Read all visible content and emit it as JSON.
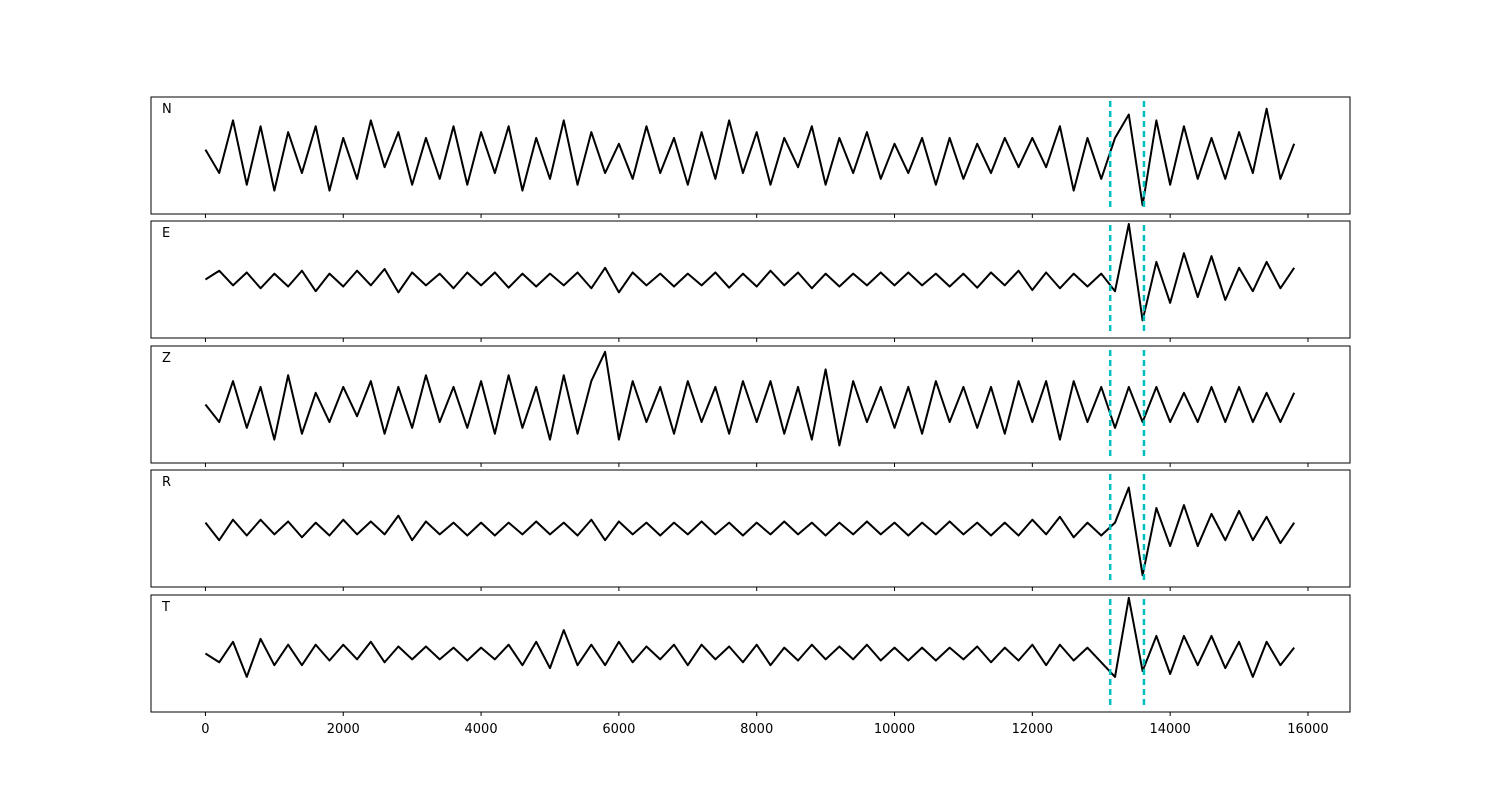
{
  "chart_data": [
    {
      "type": "line",
      "label": "N",
      "color": "#000000",
      "vline_color": "#00bfbf",
      "vlines": [
        13130,
        13620
      ],
      "xlim": [
        -790,
        16610
      ],
      "ylim": [
        -1,
        1
      ],
      "xticks": [
        0,
        2000,
        4000,
        6000,
        8000,
        10000,
        12000,
        14000,
        16000
      ],
      "xtick_labels": false,
      "x": [
        0,
        200,
        400,
        600,
        800,
        1000,
        1200,
        1400,
        1600,
        1800,
        2000,
        2200,
        2400,
        2600,
        2800,
        3000,
        3200,
        3400,
        3600,
        3800,
        4000,
        4200,
        4400,
        4600,
        4800,
        5000,
        5200,
        5400,
        5600,
        5800,
        6000,
        6200,
        6400,
        6600,
        6800,
        7000,
        7200,
        7400,
        7600,
        7800,
        8000,
        8200,
        8400,
        8600,
        8800,
        9000,
        9200,
        9400,
        9600,
        9800,
        10000,
        10200,
        10400,
        10600,
        10800,
        11000,
        11200,
        11400,
        11600,
        11800,
        12000,
        12200,
        12400,
        12600,
        12800,
        13000,
        13200,
        13400,
        13600,
        13800,
        14000,
        14200,
        14400,
        14600,
        14800,
        15000,
        15200,
        15400,
        15600,
        15800
      ],
      "values": [
        0.1,
        -0.3,
        0.6,
        -0.5,
        0.5,
        -0.6,
        0.4,
        -0.3,
        0.5,
        -0.6,
        0.3,
        -0.4,
        0.6,
        -0.2,
        0.4,
        -0.5,
        0.3,
        -0.4,
        0.5,
        -0.5,
        0.4,
        -0.3,
        0.5,
        -0.6,
        0.3,
        -0.4,
        0.6,
        -0.5,
        0.4,
        -0.3,
        0.2,
        -0.4,
        0.5,
        -0.3,
        0.3,
        -0.5,
        0.4,
        -0.4,
        0.6,
        -0.3,
        0.4,
        -0.5,
        0.3,
        -0.2,
        0.5,
        -0.5,
        0.3,
        -0.3,
        0.4,
        -0.4,
        0.2,
        -0.3,
        0.3,
        -0.5,
        0.3,
        -0.4,
        0.2,
        -0.3,
        0.3,
        -0.2,
        0.3,
        -0.2,
        0.5,
        -0.6,
        0.3,
        -0.4,
        0.3,
        0.7,
        -0.85,
        0.6,
        -0.5,
        0.5,
        -0.4,
        0.3,
        -0.4,
        0.4,
        -0.3,
        0.8,
        -0.4,
        0.2
      ]
    },
    {
      "type": "line",
      "label": "E",
      "color": "#000000",
      "vline_color": "#00bfbf",
      "vlines": [
        13130,
        13620
      ],
      "xlim": [
        -790,
        16610
      ],
      "ylim": [
        -1,
        1
      ],
      "xticks": [
        0,
        2000,
        4000,
        6000,
        8000,
        10000,
        12000,
        14000,
        16000
      ],
      "xtick_labels": false,
      "x": [
        0,
        200,
        400,
        600,
        800,
        1000,
        1200,
        1400,
        1600,
        1800,
        2000,
        2200,
        2400,
        2600,
        2800,
        3000,
        3200,
        3400,
        3600,
        3800,
        4000,
        4200,
        4400,
        4600,
        4800,
        5000,
        5200,
        5400,
        5600,
        5800,
        6000,
        6200,
        6400,
        6600,
        6800,
        7000,
        7200,
        7400,
        7600,
        7800,
        8000,
        8200,
        8400,
        8600,
        8800,
        9000,
        9200,
        9400,
        9600,
        9800,
        10000,
        10200,
        10400,
        10600,
        10800,
        11000,
        11200,
        11400,
        11600,
        11800,
        12000,
        12200,
        12400,
        12600,
        12800,
        13000,
        13200,
        13400,
        13600,
        13800,
        14000,
        14200,
        14400,
        14600,
        14800,
        15000,
        15200,
        15400,
        15600,
        15800
      ],
      "values": [
        0,
        0.15,
        -0.1,
        0.12,
        -0.15,
        0.1,
        -0.12,
        0.15,
        -0.2,
        0.1,
        -0.12,
        0.15,
        -0.1,
        0.18,
        -0.22,
        0.12,
        -0.1,
        0.1,
        -0.15,
        0.12,
        -0.1,
        0.12,
        -0.14,
        0.1,
        -0.12,
        0.1,
        -0.1,
        0.12,
        -0.15,
        0.2,
        -0.22,
        0.12,
        -0.1,
        0.1,
        -0.12,
        0.1,
        -0.1,
        0.12,
        -0.14,
        0.1,
        -0.12,
        0.15,
        -0.1,
        0.12,
        -0.15,
        0.1,
        -0.12,
        0.1,
        -0.1,
        0.12,
        -0.1,
        0.12,
        -0.1,
        0.1,
        -0.12,
        0.1,
        -0.14,
        0.12,
        -0.1,
        0.15,
        -0.18,
        0.12,
        -0.15,
        0.1,
        -0.12,
        0.1,
        -0.2,
        0.95,
        -0.7,
        0.3,
        -0.4,
        0.45,
        -0.3,
        0.4,
        -0.35,
        0.2,
        -0.2,
        0.3,
        -0.15,
        0.2
      ]
    },
    {
      "type": "line",
      "label": "Z",
      "color": "#000000",
      "vline_color": "#00bfbf",
      "vlines": [
        13130,
        13620
      ],
      "xlim": [
        -790,
        16610
      ],
      "ylim": [
        -1,
        1
      ],
      "xticks": [
        0,
        2000,
        4000,
        6000,
        8000,
        10000,
        12000,
        14000,
        16000
      ],
      "xtick_labels": false,
      "x": [
        0,
        200,
        400,
        600,
        800,
        1000,
        1200,
        1400,
        1600,
        1800,
        2000,
        2200,
        2400,
        2600,
        2800,
        3000,
        3200,
        3400,
        3600,
        3800,
        4000,
        4200,
        4400,
        4600,
        4800,
        5000,
        5200,
        5400,
        5600,
        5800,
        6000,
        6200,
        6400,
        6600,
        6800,
        7000,
        7200,
        7400,
        7600,
        7800,
        8000,
        8200,
        8400,
        8600,
        8800,
        9000,
        9200,
        9400,
        9600,
        9800,
        10000,
        10200,
        10400,
        10600,
        10800,
        11000,
        11200,
        11400,
        11600,
        11800,
        12000,
        12200,
        12400,
        12600,
        12800,
        13000,
        13200,
        13400,
        13600,
        13800,
        14000,
        14200,
        14400,
        14600,
        14800,
        15000,
        15200,
        15400,
        15600,
        15800
      ],
      "values": [
        0,
        -0.3,
        0.4,
        -0.4,
        0.3,
        -0.6,
        0.5,
        -0.5,
        0.2,
        -0.3,
        0.3,
        -0.2,
        0.4,
        -0.5,
        0.3,
        -0.4,
        0.5,
        -0.3,
        0.3,
        -0.4,
        0.4,
        -0.5,
        0.5,
        -0.4,
        0.3,
        -0.6,
        0.5,
        -0.5,
        0.4,
        0.9,
        -0.6,
        0.4,
        -0.3,
        0.3,
        -0.5,
        0.4,
        -0.3,
        0.3,
        -0.5,
        0.4,
        -0.3,
        0.4,
        -0.5,
        0.3,
        -0.6,
        0.6,
        -0.7,
        0.4,
        -0.3,
        0.3,
        -0.4,
        0.3,
        -0.5,
        0.4,
        -0.3,
        0.3,
        -0.4,
        0.3,
        -0.5,
        0.4,
        -0.3,
        0.4,
        -0.6,
        0.4,
        -0.3,
        0.3,
        -0.4,
        0.3,
        -0.3,
        0.3,
        -0.3,
        0.2,
        -0.3,
        0.3,
        -0.3,
        0.3,
        -0.3,
        0.2,
        -0.3,
        0.2
      ]
    },
    {
      "type": "line",
      "label": "R",
      "color": "#000000",
      "vline_color": "#00bfbf",
      "vlines": [
        13130,
        13620
      ],
      "xlim": [
        -790,
        16610
      ],
      "ylim": [
        -1,
        1
      ],
      "xticks": [
        0,
        2000,
        4000,
        6000,
        8000,
        10000,
        12000,
        14000,
        16000
      ],
      "xtick_labels": false,
      "x": [
        0,
        200,
        400,
        600,
        800,
        1000,
        1200,
        1400,
        1600,
        1800,
        2000,
        2200,
        2400,
        2600,
        2800,
        3000,
        3200,
        3400,
        3600,
        3800,
        4000,
        4200,
        4400,
        4600,
        4800,
        5000,
        5200,
        5400,
        5600,
        5800,
        6000,
        6200,
        6400,
        6600,
        6800,
        7000,
        7200,
        7400,
        7600,
        7800,
        8000,
        8200,
        8400,
        8600,
        8800,
        9000,
        9200,
        9400,
        9600,
        9800,
        10000,
        10200,
        10400,
        10600,
        10800,
        11000,
        11200,
        11400,
        11600,
        11800,
        12000,
        12200,
        12400,
        12600,
        12800,
        13000,
        13200,
        13400,
        13600,
        13800,
        14000,
        14200,
        14400,
        14600,
        14800,
        15000,
        15200,
        15400,
        15600,
        15800
      ],
      "values": [
        0.1,
        -0.2,
        0.15,
        -0.12,
        0.15,
        -0.1,
        0.12,
        -0.15,
        0.1,
        -0.12,
        0.15,
        -0.1,
        0.12,
        -0.1,
        0.22,
        -0.2,
        0.12,
        -0.1,
        0.1,
        -0.12,
        0.1,
        -0.12,
        0.1,
        -0.1,
        0.12,
        -0.1,
        0.1,
        -0.12,
        0.15,
        -0.2,
        0.12,
        -0.1,
        0.1,
        -0.12,
        0.1,
        -0.1,
        0.12,
        -0.1,
        0.1,
        -0.12,
        0.1,
        -0.1,
        0.12,
        -0.1,
        0.1,
        -0.12,
        0.1,
        -0.1,
        0.12,
        -0.1,
        0.1,
        -0.12,
        0.1,
        -0.1,
        0.12,
        -0.1,
        0.1,
        -0.12,
        0.1,
        -0.12,
        0.15,
        -0.1,
        0.2,
        -0.15,
        0.1,
        -0.12,
        0.1,
        0.7,
        -0.8,
        0.35,
        -0.3,
        0.4,
        -0.3,
        0.25,
        -0.2,
        0.3,
        -0.2,
        0.2,
        -0.25,
        0.1
      ]
    },
    {
      "type": "line",
      "label": "T",
      "color": "#000000",
      "vline_color": "#00bfbf",
      "vlines": [
        13130,
        13620
      ],
      "xlim": [
        -790,
        16610
      ],
      "ylim": [
        -1,
        1
      ],
      "xticks": [
        0,
        2000,
        4000,
        6000,
        8000,
        10000,
        12000,
        14000,
        16000
      ],
      "xtick_labels": true,
      "x": [
        0,
        200,
        400,
        600,
        800,
        1000,
        1200,
        1400,
        1600,
        1800,
        2000,
        2200,
        2400,
        2600,
        2800,
        3000,
        3200,
        3400,
        3600,
        3800,
        4000,
        4200,
        4400,
        4600,
        4800,
        5000,
        5200,
        5400,
        5600,
        5800,
        6000,
        6200,
        6400,
        6600,
        6800,
        7000,
        7200,
        7400,
        7600,
        7800,
        8000,
        8200,
        8400,
        8600,
        8800,
        9000,
        9200,
        9400,
        9600,
        9800,
        10000,
        10200,
        10400,
        10600,
        10800,
        11000,
        11200,
        11400,
        11600,
        11800,
        12000,
        12200,
        12400,
        12600,
        12800,
        13000,
        13200,
        13400,
        13600,
        13800,
        14000,
        14200,
        14400,
        14600,
        14800,
        15000,
        15200,
        15400,
        15600,
        15800
      ],
      "values": [
        0,
        -0.15,
        0.2,
        -0.4,
        0.25,
        -0.2,
        0.15,
        -0.2,
        0.15,
        -0.12,
        0.15,
        -0.1,
        0.2,
        -0.15,
        0.12,
        -0.1,
        0.12,
        -0.1,
        0.1,
        -0.12,
        0.1,
        -0.1,
        0.15,
        -0.2,
        0.2,
        -0.25,
        0.4,
        -0.2,
        0.15,
        -0.2,
        0.2,
        -0.15,
        0.12,
        -0.1,
        0.15,
        -0.2,
        0.15,
        -0.1,
        0.12,
        -0.15,
        0.15,
        -0.2,
        0.1,
        -0.12,
        0.15,
        -0.1,
        0.12,
        -0.1,
        0.15,
        -0.12,
        0.1,
        -0.12,
        0.1,
        -0.12,
        0.1,
        -0.1,
        0.12,
        -0.15,
        0.1,
        -0.12,
        0.15,
        -0.2,
        0.15,
        -0.12,
        0.1,
        -0.15,
        -0.4,
        0.95,
        -0.3,
        0.3,
        -0.35,
        0.3,
        -0.2,
        0.3,
        -0.25,
        0.2,
        -0.4,
        0.2,
        -0.2,
        0.1
      ]
    }
  ]
}
